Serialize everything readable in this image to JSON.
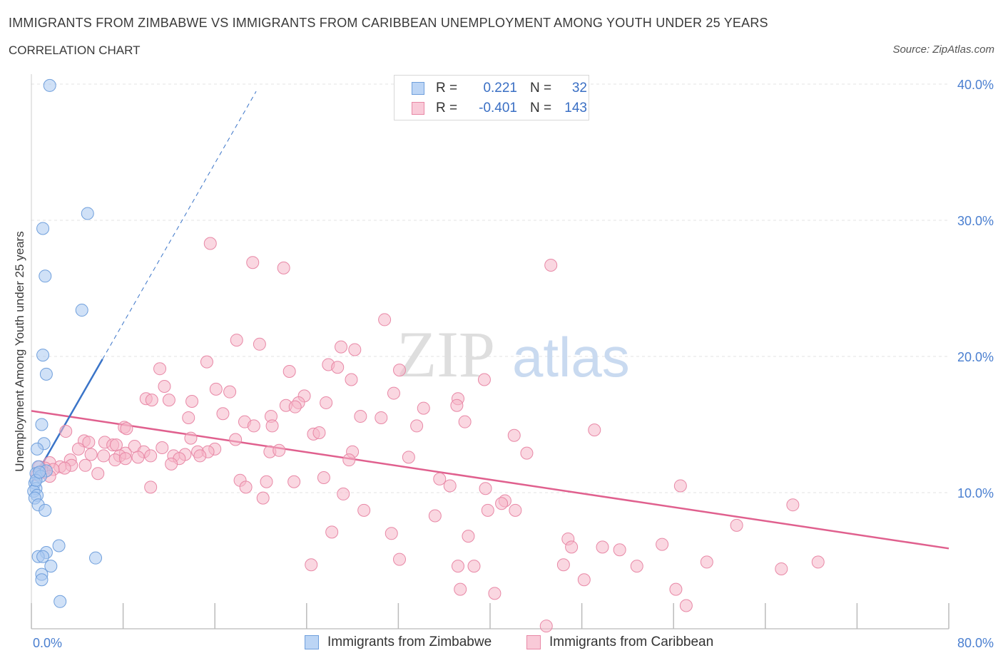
{
  "title": "IMMIGRANTS FROM ZIMBABWE VS IMMIGRANTS FROM CARIBBEAN UNEMPLOYMENT AMONG YOUTH UNDER 25 YEARS",
  "subtitle": "CORRELATION CHART",
  "source": "Source: ZipAtlas.com",
  "watermark": {
    "zip": "ZIP",
    "atlas": "atlas"
  },
  "legend": {
    "rows": [
      {
        "r_label": "R =",
        "r_value": "0.221",
        "n_label": "N =",
        "n_value": "32",
        "color": "#a9c8f0"
      },
      {
        "r_label": "R =",
        "r_value": "-0.401",
        "n_label": "N =",
        "n_value": "143",
        "color": "#f5b6c8"
      }
    ]
  },
  "bottom_legend": [
    {
      "label": "Immigrants from Zimbabwe",
      "color": "#a9c8f0"
    },
    {
      "label": "Immigrants from Caribbean",
      "color": "#f5b6c8"
    }
  ],
  "chart_data": {
    "type": "scatter",
    "title": "IMMIGRANTS FROM ZIMBABWE VS IMMIGRANTS FROM CARIBBEAN UNEMPLOYMENT AMONG YOUTH UNDER 25 YEARS",
    "xlabel": "",
    "ylabel": "Unemployment Among Youth under 25 years",
    "xlim": [
      0,
      80
    ],
    "ylim": [
      0,
      40
    ],
    "x_tick_labels": [
      "0.0%",
      "80.0%"
    ],
    "y_ticks": [
      10,
      20,
      30,
      40
    ],
    "y_tick_labels": [
      "10.0%",
      "20.0%",
      "30.0%",
      "40.0%"
    ],
    "grid": true,
    "series": [
      {
        "name": "Immigrants from Zimbabwe",
        "color": "#a9c8f0",
        "stroke": "#6f9fdc",
        "trend": {
          "x0": 0,
          "y0": 10.7,
          "x1": 6.2,
          "y1": 19.8,
          "extend_to_x": 19.6,
          "dashed_extension": true,
          "color": "#3a74c8"
        },
        "points": [
          [
            1.6,
            39.9
          ],
          [
            4.9,
            30.5
          ],
          [
            1.0,
            29.4
          ],
          [
            1.2,
            25.9
          ],
          [
            4.4,
            23.4
          ],
          [
            1.0,
            20.1
          ],
          [
            1.3,
            18.7
          ],
          [
            0.9,
            15.0
          ],
          [
            1.1,
            13.6
          ],
          [
            0.5,
            13.2
          ],
          [
            0.6,
            11.9
          ],
          [
            0.4,
            11.4
          ],
          [
            1.3,
            11.6
          ],
          [
            0.8,
            11.2
          ],
          [
            0.3,
            10.7
          ],
          [
            0.4,
            10.3
          ],
          [
            0.2,
            10.1
          ],
          [
            0.5,
            9.8
          ],
          [
            0.3,
            9.6
          ],
          [
            0.6,
            9.1
          ],
          [
            1.2,
            8.7
          ],
          [
            2.4,
            6.1
          ],
          [
            1.3,
            5.6
          ],
          [
            0.6,
            5.3
          ],
          [
            1.0,
            5.3
          ],
          [
            5.6,
            5.2
          ],
          [
            1.7,
            4.6
          ],
          [
            0.9,
            4.0
          ],
          [
            0.9,
            3.6
          ],
          [
            2.5,
            2.0
          ],
          [
            0.4,
            10.9
          ],
          [
            0.7,
            11.5
          ]
        ]
      },
      {
        "name": "Immigrants from Caribbean",
        "color": "#f5b6c8",
        "stroke": "#e888a6",
        "trend": {
          "x0": 0,
          "y0": 16.0,
          "x1": 80,
          "y1": 5.9,
          "color": "#e0608e"
        },
        "points": [
          [
            15.6,
            28.3
          ],
          [
            19.3,
            26.9
          ],
          [
            22.0,
            26.5
          ],
          [
            45.3,
            26.7
          ],
          [
            30.8,
            22.7
          ],
          [
            17.9,
            21.2
          ],
          [
            19.9,
            20.9
          ],
          [
            27.0,
            20.7
          ],
          [
            28.2,
            20.5
          ],
          [
            15.3,
            19.6
          ],
          [
            25.9,
            19.4
          ],
          [
            26.7,
            19.2
          ],
          [
            11.2,
            19.1
          ],
          [
            32.1,
            19.0
          ],
          [
            22.5,
            18.9
          ],
          [
            27.9,
            18.3
          ],
          [
            39.5,
            18.3
          ],
          [
            11.6,
            17.8
          ],
          [
            16.1,
            17.6
          ],
          [
            17.3,
            17.4
          ],
          [
            31.6,
            17.3
          ],
          [
            23.8,
            17.1
          ],
          [
            10.0,
            16.9
          ],
          [
            10.5,
            16.8
          ],
          [
            12.0,
            16.8
          ],
          [
            14.0,
            16.7
          ],
          [
            23.3,
            16.6
          ],
          [
            25.7,
            16.6
          ],
          [
            37.2,
            16.9
          ],
          [
            22.2,
            16.4
          ],
          [
            23.0,
            16.3
          ],
          [
            34.2,
            16.2
          ],
          [
            37.1,
            16.4
          ],
          [
            16.7,
            15.8
          ],
          [
            20.9,
            15.6
          ],
          [
            13.7,
            15.5
          ],
          [
            28.7,
            15.6
          ],
          [
            30.5,
            15.5
          ],
          [
            37.8,
            15.2
          ],
          [
            18.6,
            15.2
          ],
          [
            19.4,
            14.9
          ],
          [
            21.0,
            14.9
          ],
          [
            33.6,
            14.9
          ],
          [
            8.1,
            14.8
          ],
          [
            8.3,
            14.7
          ],
          [
            3.0,
            14.5
          ],
          [
            24.6,
            14.3
          ],
          [
            25.1,
            14.4
          ],
          [
            49.1,
            14.6
          ],
          [
            42.1,
            14.2
          ],
          [
            13.9,
            14.0
          ],
          [
            17.8,
            13.9
          ],
          [
            4.6,
            13.8
          ],
          [
            5.0,
            13.7
          ],
          [
            6.4,
            13.7
          ],
          [
            7.1,
            13.5
          ],
          [
            7.4,
            13.5
          ],
          [
            9.0,
            13.4
          ],
          [
            11.4,
            13.3
          ],
          [
            16.0,
            13.2
          ],
          [
            4.1,
            13.2
          ],
          [
            9.8,
            13.0
          ],
          [
            14.5,
            13.0
          ],
          [
            20.8,
            13.0
          ],
          [
            8.2,
            12.9
          ],
          [
            15.4,
            13.0
          ],
          [
            21.6,
            13.1
          ],
          [
            28.0,
            13.0
          ],
          [
            43.2,
            12.9
          ],
          [
            5.2,
            12.8
          ],
          [
            7.7,
            12.7
          ],
          [
            10.4,
            12.7
          ],
          [
            12.4,
            12.7
          ],
          [
            13.4,
            12.8
          ],
          [
            14.7,
            12.7
          ],
          [
            6.3,
            12.7
          ],
          [
            9.3,
            12.6
          ],
          [
            12.9,
            12.5
          ],
          [
            3.4,
            12.4
          ],
          [
            7.3,
            12.4
          ],
          [
            8.2,
            12.5
          ],
          [
            27.7,
            12.4
          ],
          [
            32.9,
            12.6
          ],
          [
            1.6,
            12.2
          ],
          [
            3.5,
            12.0
          ],
          [
            4.7,
            12.0
          ],
          [
            12.2,
            12.1
          ],
          [
            2.5,
            11.9
          ],
          [
            1.2,
            11.8
          ],
          [
            2.9,
            11.8
          ],
          [
            1.1,
            11.5
          ],
          [
            1.9,
            11.7
          ],
          [
            0.7,
            11.9
          ],
          [
            0.5,
            11.3
          ],
          [
            1.6,
            11.2
          ],
          [
            5.8,
            11.4
          ],
          [
            25.5,
            11.1
          ],
          [
            35.6,
            11.0
          ],
          [
            18.2,
            10.9
          ],
          [
            20.5,
            10.8
          ],
          [
            22.9,
            10.8
          ],
          [
            36.5,
            10.5
          ],
          [
            18.7,
            10.4
          ],
          [
            10.4,
            10.4
          ],
          [
            39.6,
            10.3
          ],
          [
            56.6,
            10.5
          ],
          [
            27.2,
            9.9
          ],
          [
            20.2,
            9.6
          ],
          [
            41.3,
            9.4
          ],
          [
            41.0,
            9.2
          ],
          [
            66.4,
            9.1
          ],
          [
            29.0,
            8.7
          ],
          [
            39.8,
            8.7
          ],
          [
            42.2,
            8.7
          ],
          [
            35.2,
            8.3
          ],
          [
            61.5,
            7.6
          ],
          [
            26.2,
            7.1
          ],
          [
            31.4,
            7.0
          ],
          [
            38.1,
            6.8
          ],
          [
            46.8,
            6.6
          ],
          [
            47.1,
            6.0
          ],
          [
            49.8,
            6.0
          ],
          [
            51.3,
            5.8
          ],
          [
            55.0,
            6.2
          ],
          [
            32.1,
            5.1
          ],
          [
            58.9,
            4.9
          ],
          [
            68.6,
            4.9
          ],
          [
            24.4,
            4.7
          ],
          [
            37.2,
            4.6
          ],
          [
            38.6,
            4.6
          ],
          [
            46.4,
            4.7
          ],
          [
            52.8,
            4.6
          ],
          [
            65.4,
            4.4
          ],
          [
            48.2,
            3.6
          ],
          [
            37.4,
            2.9
          ],
          [
            56.2,
            2.9
          ],
          [
            40.4,
            2.6
          ],
          [
            57.1,
            1.7
          ],
          [
            44.9,
            0.2
          ]
        ]
      }
    ]
  }
}
